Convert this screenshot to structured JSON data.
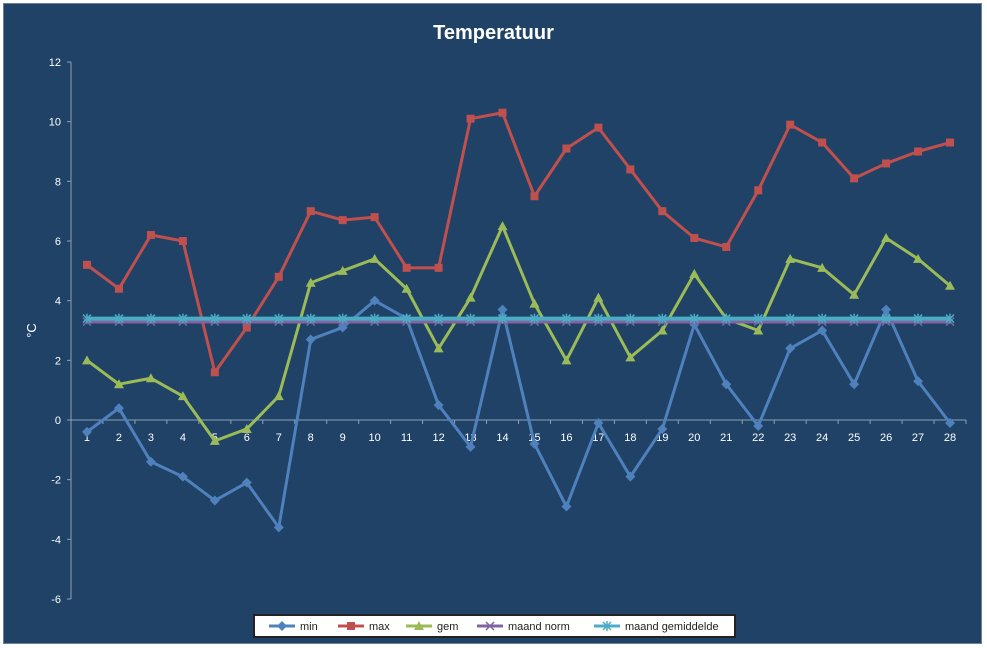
{
  "chart_data": {
    "type": "line",
    "title": "Temperatuur",
    "xlabel": "",
    "ylabel": "°C",
    "x": [
      1,
      2,
      3,
      4,
      5,
      6,
      7,
      8,
      9,
      10,
      11,
      12,
      13,
      14,
      15,
      16,
      17,
      18,
      19,
      20,
      21,
      22,
      23,
      24,
      25,
      26,
      27,
      28
    ],
    "ylim": [
      -6,
      12
    ],
    "yticks": [
      -6,
      -4,
      -2,
      0,
      2,
      4,
      6,
      8,
      10,
      12
    ],
    "grid": false,
    "legend_position": "bottom",
    "series": [
      {
        "name": "min",
        "color": "#4f81bd",
        "marker": "diamond",
        "values": [
          -0.4,
          0.4,
          -1.4,
          -1.9,
          -2.7,
          -2.1,
          -3.6,
          2.7,
          3.1,
          4.0,
          3.4,
          0.5,
          -0.9,
          3.7,
          -0.8,
          -2.9,
          -0.1,
          -1.9,
          -0.3,
          3.2,
          1.2,
          -0.2,
          2.4,
          3.0,
          1.2,
          3.7,
          1.3,
          -0.1
        ]
      },
      {
        "name": "max",
        "color": "#c0504d",
        "marker": "square",
        "values": [
          5.2,
          4.4,
          6.2,
          6.0,
          1.6,
          3.1,
          4.8,
          7.0,
          6.7,
          6.8,
          5.1,
          5.1,
          10.1,
          10.3,
          7.5,
          9.1,
          9.8,
          8.4,
          7.0,
          6.1,
          5.8,
          7.7,
          9.9,
          9.3,
          8.1,
          8.6,
          9.0,
          9.3
        ]
      },
      {
        "name": "gem",
        "color": "#9bbb59",
        "marker": "triangle",
        "values": [
          2.0,
          1.2,
          1.4,
          0.8,
          -0.7,
          -0.3,
          0.8,
          4.6,
          5.0,
          5.4,
          4.4,
          2.4,
          4.1,
          6.5,
          3.9,
          2.0,
          4.1,
          2.1,
          3.0,
          4.9,
          3.4,
          3.0,
          5.4,
          5.1,
          4.2,
          6.1,
          5.4,
          4.5
        ]
      },
      {
        "name": "maand norm",
        "color": "#8064a2",
        "marker": "x",
        "values": [
          3.3,
          3.3,
          3.3,
          3.3,
          3.3,
          3.3,
          3.3,
          3.3,
          3.3,
          3.3,
          3.3,
          3.3,
          3.3,
          3.3,
          3.3,
          3.3,
          3.3,
          3.3,
          3.3,
          3.3,
          3.3,
          3.3,
          3.3,
          3.3,
          3.3,
          3.3,
          3.3,
          3.3
        ]
      },
      {
        "name": "maand gemiddelde",
        "color": "#4bacc6",
        "marker": "star",
        "values": [
          3.4,
          3.4,
          3.4,
          3.4,
          3.4,
          3.4,
          3.4,
          3.4,
          3.4,
          3.4,
          3.4,
          3.4,
          3.4,
          3.4,
          3.4,
          3.4,
          3.4,
          3.4,
          3.4,
          3.4,
          3.4,
          3.4,
          3.4,
          3.4,
          3.4,
          3.4,
          3.4,
          3.4
        ]
      }
    ]
  }
}
